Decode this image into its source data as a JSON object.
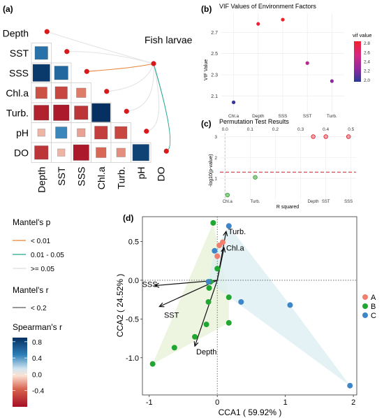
{
  "panels": {
    "a": "(a)",
    "b": "(b)",
    "c": "(c)",
    "d": "(d)"
  },
  "heatmap": {
    "row_labels": [
      "Depth",
      "SST",
      "SSS",
      "Chl.a",
      "Turb.",
      "pH",
      "DO"
    ],
    "col_labels": [
      "Depth",
      "SST",
      "SSS",
      "Chl.a",
      "Turb.",
      "pH",
      "DO"
    ],
    "cells": [
      {
        "r": 1,
        "c": 0,
        "v": 0.55
      },
      {
        "r": 2,
        "c": 0,
        "v": 0.85
      },
      {
        "r": 2,
        "c": 1,
        "v": 0.6
      },
      {
        "r": 3,
        "c": 0,
        "v": -0.45
      },
      {
        "r": 3,
        "c": 1,
        "v": -0.5
      },
      {
        "r": 3,
        "c": 2,
        "v": -0.3
      },
      {
        "r": 4,
        "c": 0,
        "v": -0.7
      },
      {
        "r": 4,
        "c": 1,
        "v": -0.75
      },
      {
        "r": 4,
        "c": 2,
        "v": -0.6
      },
      {
        "r": 4,
        "c": 3,
        "v": 0.95
      },
      {
        "r": 5,
        "c": 0,
        "v": -0.15
      },
      {
        "r": 5,
        "c": 1,
        "v": 0.45
      },
      {
        "r": 5,
        "c": 2,
        "v": -0.2
      },
      {
        "r": 5,
        "c": 3,
        "v": -0.55
      },
      {
        "r": 5,
        "c": 4,
        "v": -0.5
      },
      {
        "r": 6,
        "c": 0,
        "v": -0.6
      },
      {
        "r": 6,
        "c": 1,
        "v": -0.15
      },
      {
        "r": 6,
        "c": 2,
        "v": -0.75
      },
      {
        "r": 6,
        "c": 3,
        "v": -0.35
      },
      {
        "r": 6,
        "c": 4,
        "v": -0.25
      },
      {
        "r": 6,
        "c": 5,
        "v": 0.8
      }
    ],
    "target_label": "Fish larvae",
    "links": [
      {
        "var": "Depth",
        "p_class": ">= 0.05"
      },
      {
        "var": "SST",
        "p_class": ">= 0.05"
      },
      {
        "var": "SSS",
        "p_class": "< 0.01"
      },
      {
        "var": "Chl.a",
        "p_class": ">= 0.05"
      },
      {
        "var": "Turb.",
        "p_class": ">= 0.05"
      },
      {
        "var": "pH",
        "p_class": ">= 0.05"
      },
      {
        "var": "DO",
        "p_class": "0.01 - 0.05"
      }
    ],
    "link_colors": {
      "< 0.01": "#e8843c",
      "0.01 - 0.05": "#22a88a",
      ">= 0.05": "#e3e3e3"
    },
    "diag_dot_color": "#d7191c"
  },
  "legend_mantel_p": {
    "title": "Mantel's p",
    "items": [
      {
        "label": "< 0.01",
        "color": "#e8843c"
      },
      {
        "label": "0.01 - 0.05",
        "color": "#22a88a"
      },
      {
        "label": ">= 0.05",
        "color": "#dddddd"
      }
    ]
  },
  "legend_mantel_r": {
    "title": "Mantel's r",
    "items": [
      {
        "label": "< 0.2"
      }
    ]
  },
  "legend_spearman": {
    "title": "Spearman's r",
    "ticks": [
      0.8,
      0.4,
      0.0,
      -0.4
    ],
    "tick_labels": [
      "0.8",
      "0.4",
      "0.0",
      "-0.4"
    ],
    "range": [
      -0.8,
      0.9
    ]
  },
  "chart_data": [
    {
      "type": "scatter",
      "title": "VIF Values of Environment Factors",
      "ylabel": "VIF Value",
      "categories": [
        "Chl.a",
        "Depth",
        "SSS",
        "SST",
        "Turb."
      ],
      "values": [
        2.04,
        2.78,
        2.82,
        2.41,
        2.24
      ],
      "ylim": [
        1.95,
        2.88
      ],
      "yticks": [
        2.1,
        2.3,
        2.5,
        2.7
      ],
      "yticks_labels": [
        "2.1",
        "2.3",
        "2.5",
        "2.7"
      ],
      "legend": {
        "title": "vif value",
        "ticks": [
          2.8,
          2.6,
          2.4,
          2.2,
          2.0
        ],
        "tick_labels": [
          "2.8",
          "2.6",
          "2.4",
          "2.2",
          "2.0"
        ],
        "placement": "right"
      }
    },
    {
      "type": "scatter",
      "title": "Permutation Test Results",
      "xlabel": "R squared",
      "ylabel": "-log10(p-value)",
      "points": [
        {
          "label": "Chl.a",
          "x": 0.01,
          "y": 0.2,
          "significant": false
        },
        {
          "label": "Turb.",
          "x": 0.12,
          "y": 1.05,
          "significant": false
        },
        {
          "label": "Depth",
          "x": 0.35,
          "y": 3.0,
          "significant": true
        },
        {
          "label": "SST",
          "x": 0.4,
          "y": 3.0,
          "significant": true
        },
        {
          "label": "SSS",
          "x": 0.49,
          "y": 3.0,
          "significant": true
        }
      ],
      "xlim": [
        -0.02,
        0.52
      ],
      "ylim": [
        0,
        3.15
      ],
      "xticks": [
        0.0,
        0.1,
        0.2,
        0.3,
        0.4,
        0.5
      ],
      "xticks_labels": [
        "0.0",
        "0.1",
        "0.2",
        "0.3",
        "0.4",
        "0.5"
      ],
      "yticks": [
        1,
        2,
        3
      ],
      "yticks_labels": [
        "1",
        "2",
        "3"
      ],
      "threshold_y": 1.3
    },
    {
      "type": "scatter",
      "xlabel": "CCA1 ( 59.92% )",
      "ylabel": "CCA2 ( 24.52% )",
      "xlim": [
        -1.1,
        2.05
      ],
      "ylim": [
        -1.48,
        0.82
      ],
      "xticks": [
        -1,
        0,
        1,
        2
      ],
      "xticks_labels": [
        "-1",
        "0",
        "1",
        "2"
      ],
      "yticks": [
        -1.0,
        -0.5,
        0.0,
        0.5
      ],
      "yticks_labels": [
        "-1.0",
        "-0.5",
        "0.0",
        "0.5"
      ],
      "series": [
        {
          "name": "A",
          "color": "#f07f6e",
          "points": [
            [
              0.03,
              0.45
            ],
            [
              0.08,
              0.49
            ],
            [
              0.0,
              0.31
            ]
          ]
        },
        {
          "name": "B",
          "color": "#22a632",
          "points": [
            [
              -0.06,
              0.74
            ],
            [
              0.0,
              0.15
            ],
            [
              -0.1,
              -0.02
            ],
            [
              -0.12,
              -0.1
            ],
            [
              -0.13,
              -0.28
            ],
            [
              0.17,
              -0.22
            ],
            [
              -0.16,
              -0.57
            ],
            [
              0.17,
              -0.55
            ],
            [
              -0.33,
              -0.73
            ],
            [
              -0.63,
              -0.87
            ],
            [
              -0.95,
              -1.08
            ]
          ]
        },
        {
          "name": "C",
          "color": "#3f86c9",
          "points": [
            [
              0.17,
              0.7
            ],
            [
              -0.04,
              0.38
            ],
            [
              -0.13,
              -0.02
            ],
            [
              0.35,
              -0.28
            ],
            [
              1.07,
              -0.32
            ],
            [
              1.95,
              -1.36
            ]
          ]
        }
      ],
      "vectors": [
        {
          "label": "Turb.",
          "x": 0.13,
          "y": 0.63
        },
        {
          "label": "Chl.a",
          "x": 0.1,
          "y": 0.42
        },
        {
          "label": "SSS",
          "x": -0.92,
          "y": -0.07
        },
        {
          "label": "SST",
          "x": -0.85,
          "y": -0.34
        },
        {
          "label": "Depth",
          "x": -0.33,
          "y": -0.85
        }
      ],
      "hull_fills": {
        "A": "#fce4dd",
        "B": "#e7f1d5",
        "C": "#dbeef2"
      }
    }
  ]
}
